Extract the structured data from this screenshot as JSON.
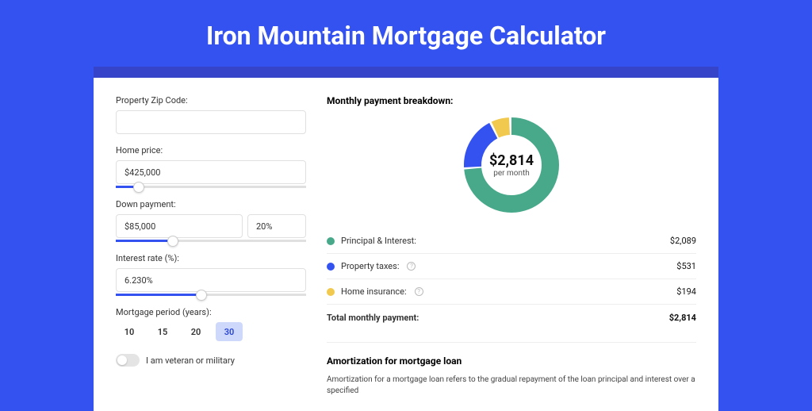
{
  "title": "Iron Mountain Mortgage Calculator",
  "form": {
    "zip": {
      "label": "Property Zip Code:",
      "value": ""
    },
    "home_price": {
      "label": "Home price:",
      "value": "$425,000",
      "slider_pct": 12
    },
    "down_payment": {
      "label": "Down payment:",
      "value": "$85,000",
      "pct_value": "20%",
      "slider_pct": 30
    },
    "interest": {
      "label": "Interest rate (%):",
      "value": "6.230%",
      "slider_pct": 45
    },
    "period": {
      "label": "Mortgage period (years):",
      "options": [
        "10",
        "15",
        "20",
        "30"
      ],
      "active_index": 3
    },
    "veteran": {
      "label": "I am veteran or military",
      "on": false
    }
  },
  "breakdown": {
    "heading": "Monthly payment breakdown:",
    "center_amount": "$2,814",
    "center_sub": "per month",
    "rows": [
      {
        "swatch": "#48a98a",
        "label": "Principal & Interest:",
        "info": false,
        "value": "$2,089"
      },
      {
        "swatch": "#3452f0",
        "label": "Property taxes:",
        "info": true,
        "value": "$531"
      },
      {
        "swatch": "#f0c94e",
        "label": "Home insurance:",
        "info": true,
        "value": "$194"
      }
    ],
    "total": {
      "label": "Total monthly payment:",
      "value": "$2,814"
    },
    "donut": {
      "green_pct": 74.2,
      "blue_pct": 18.9,
      "yellow_pct": 6.9,
      "colors": {
        "green": "#48a98a",
        "blue": "#3452f0",
        "yellow": "#f0c94e"
      },
      "stroke_width": 22
    }
  },
  "amortization": {
    "heading": "Amortization for mortgage loan",
    "text": "Amortization for a mortgage loan refers to the gradual repayment of the loan principal and interest over a specified"
  }
}
